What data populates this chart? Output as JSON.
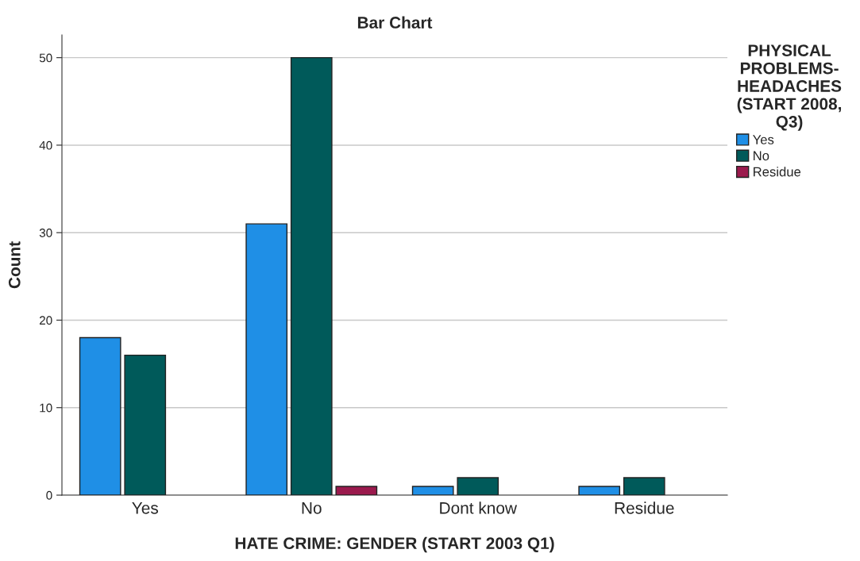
{
  "chart_data": {
    "type": "bar",
    "title": "Bar Chart",
    "xlabel": "HATE CRIME: GENDER (START 2003 Q1)",
    "ylabel": "Count",
    "legend_title": "PHYSICAL\nPROBLEMS-\nHEADACHES\n(START 2008,\nQ3)",
    "categories": [
      "Yes",
      "No",
      "Dont know",
      "Residue"
    ],
    "series": [
      {
        "name": "Yes",
        "color": "#1f8fe6",
        "values": [
          18,
          31,
          1,
          1
        ]
      },
      {
        "name": "No",
        "color": "#005a5a",
        "values": [
          16,
          50,
          2,
          2
        ]
      },
      {
        "name": "Residue",
        "color": "#9b1a4d",
        "values": [
          null,
          1,
          null,
          null
        ]
      }
    ],
    "ylim": [
      0,
      52.6
    ],
    "yticks": [
      0,
      10,
      20,
      30,
      40,
      50
    ],
    "grid": "y",
    "legend": "right"
  }
}
